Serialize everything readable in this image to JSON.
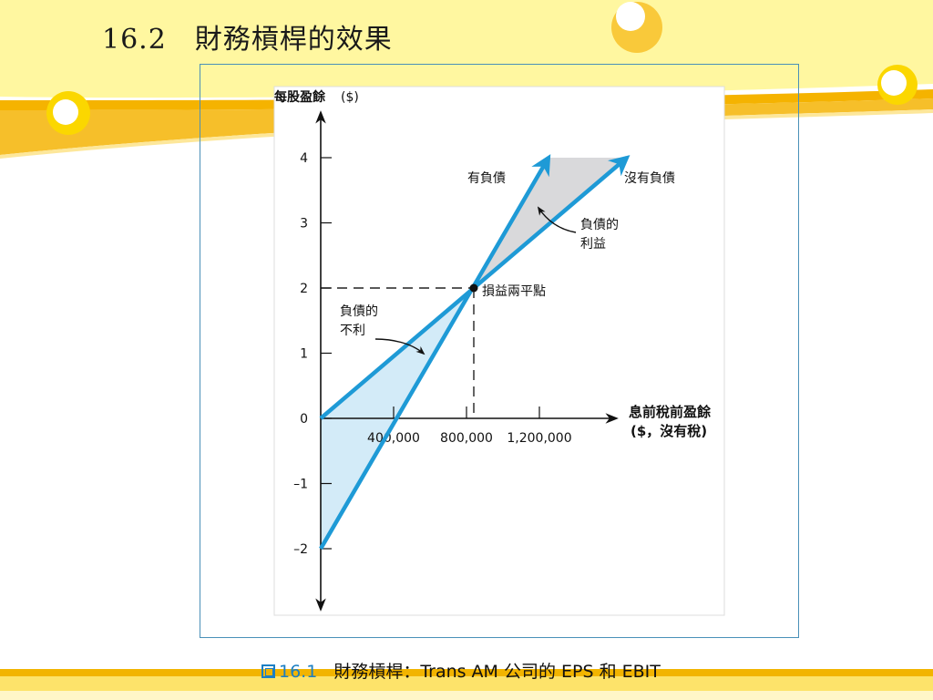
{
  "slide": {
    "title": "16.2　財務槓桿的效果",
    "caption_number": "16.1",
    "caption_text": "財務槓桿：Trans AM 公司的 EPS 和 EBIT",
    "colors": {
      "accent": "#1c7fc4",
      "banner": "#fff7a0",
      "stripe": "#f5b300"
    }
  },
  "chart_data": {
    "type": "line",
    "ylabel": "每股盈餘",
    "ylabel_unit": "($)",
    "xlabel_line1": "息前稅前盈餘",
    "xlabel_line2": "($，沒有稅)",
    "x_ticks": [
      {
        "value": 400000,
        "label": "400,000"
      },
      {
        "value": 800000,
        "label": "800,000"
      },
      {
        "value": 1200000,
        "label": "1,200,000"
      }
    ],
    "y_ticks": [
      {
        "value": 4,
        "label": "4"
      },
      {
        "value": 3,
        "label": "3"
      },
      {
        "value": 2,
        "label": "2"
      },
      {
        "value": 1,
        "label": "1"
      },
      {
        "value": 0,
        "label": "0"
      },
      {
        "value": -1,
        "label": "–1"
      },
      {
        "value": -2,
        "label": "–2"
      }
    ],
    "xlim": [
      0,
      1600000
    ],
    "ylim": [
      -2.9,
      4.9
    ],
    "series": [
      {
        "name": "有負債",
        "x": [
          0,
          1250000
        ],
        "y": [
          -2,
          4
        ],
        "color": "#1e9ad6"
      },
      {
        "name": "沒有負債",
        "x": [
          0,
          1680000
        ],
        "y": [
          0,
          4
        ],
        "color": "#1e9ad6"
      }
    ],
    "break_even": {
      "x": 840000,
      "y": 2,
      "label": "損益兩平點"
    },
    "annotations": {
      "advantage_line1": "負債的",
      "advantage_line2": "利益",
      "disadvantage_line1": "負債的",
      "disadvantage_line2": "不利"
    },
    "shading": {
      "advantage_color": "#d9d9db",
      "disadvantage_color": "#d3ebf8"
    }
  }
}
